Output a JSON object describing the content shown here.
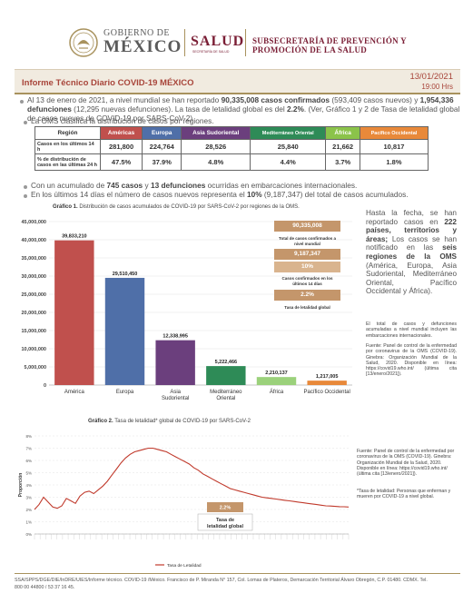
{
  "header": {
    "gob_small": "GOBIERNO DE",
    "gob_big": "MÉXICO",
    "salud": "SALUD",
    "salud_sub": "SECRETARÍA DE SALUD",
    "subsec_line1": "SUBSECRETARÍA DE PREVENCIÓN Y",
    "subsec_line2": "PROMOCIÓN DE LA SALUD"
  },
  "report": {
    "title": "Informe Técnico Diario COVID-19 MÉXICO",
    "date": "13/01/2021",
    "time": "19:00 Hrs"
  },
  "paragraphs": {
    "p1_a": "Al 13 de enero de 2021, a nivel mundial se han reportado ",
    "p1_b": "90,335,008 casos confirmados",
    "p1_c": " (593,409 casos nuevos) y ",
    "p1_d": "1,954,336",
    "p1_e": "defunciones",
    "p1_f": " (12,295 nuevas defunciones). La tasa de letalidad global es del ",
    "p1_g": "2.2%",
    "p1_h": ". (Ver, Gráfico 1 y 2 de Tasa de letalidad global",
    "p1_i": "de casos nuevos de COVID-19 por SARS-CoV-2)",
    "p2": "La OMS clasifica la distribución de casos por regiones.",
    "p3_a": "Con un acumulado de ",
    "p3_b": "745 casos",
    "p3_c": " y ",
    "p3_d": "13 defunciones",
    "p3_e": " ocurridas en embarcaciones internacionales.",
    "p4_a": "En los últimos 14 días el número de casos nuevos representa el ",
    "p4_b": "10%",
    "p4_c": " (9,187,347) del total de casos acumulados."
  },
  "region_table": {
    "header_label": "Región",
    "regions": [
      "Américas",
      "Europa",
      "Asia Sudoriental",
      "Mediterráneo Oriental",
      "África",
      "Pacífico Occidental"
    ],
    "region_colors": [
      "#c0504d",
      "#4f6fa8",
      "#6b3f7d",
      "#2e8b57",
      "#8bc34a",
      "#e8893a"
    ],
    "row1_label": "Casos en los últimos 14 h",
    "row1_values": [
      "281,800",
      "224,764",
      "28,526",
      "25,840",
      "21,662",
      "10,817"
    ],
    "row2_label": "% de distribución de casos en las últimas 24 h",
    "row2_values": [
      "47.5%",
      "37.9%",
      "4.8%",
      "4.4%",
      "3.7%",
      "1.8%"
    ]
  },
  "graph1": {
    "title_bold": "Gráfico 1.",
    "title_rest": " Distribución de casos acumulados de COVID-19 por SARS-CoV-2 por regiones de la OMS."
  },
  "sidebox": {
    "total": "90,335,008",
    "total_label": "Total de casos confirmados a nivel mundial",
    "last14": "9,187,347",
    "pct": "10%",
    "last14_label": "Casos confirmados en los últimos 14 días",
    "rate": "2.2%",
    "rate_label": "Tasa de letalidad global"
  },
  "chart_data": [
    {
      "type": "bar",
      "categories": [
        "América",
        "Europa",
        "Asia Sudoriental",
        "Mediterráneo Oriental",
        "África",
        "Pacífico Occidental"
      ],
      "values": [
        39833210,
        29510450,
        12338995,
        5222466,
        2210137,
        1217005
      ],
      "value_labels": [
        "39,833,210",
        "29,510,450",
        "12,338,995",
        "5,222,466",
        "2,210,137",
        "1,217,005"
      ],
      "colors": [
        "#c0504d",
        "#4f6fa8",
        "#6b3f7d",
        "#2e8b57",
        "#9bd17b",
        "#e8893a"
      ],
      "yticks": [
        "45,000,000",
        "40,000,000",
        "35,000,000",
        "30,000,000",
        "25,000,000",
        "20,000,000",
        "15,000,000",
        "10,000,000",
        "5,000,000",
        "0"
      ],
      "ylim": [
        0,
        45000000
      ]
    },
    {
      "type": "line",
      "title_bold": "Gráfico 2.",
      "title_rest": " Tasa de letalidad* global de COVID-19 por SARS-CoV-2",
      "ylabel": "Proporción",
      "ytick_labels": [
        "8%",
        "7%",
        "6%",
        "5%",
        "4%",
        "3%",
        "2%",
        "1%",
        "0%"
      ],
      "ylim": [
        0,
        8
      ],
      "legend": "Tasa de Letalidad",
      "annotation_value": "2.2%",
      "annotation_label": "Tasa de letalidad global",
      "color": "#c0392b",
      "series": [
        {
          "name": "Tasa de Letalidad",
          "values": [
            2.0,
            2.4,
            3.0,
            2.6,
            2.2,
            2.1,
            2.3,
            2.9,
            2.7,
            2.5,
            3.1,
            3.4,
            3.5,
            3.3,
            3.6,
            3.9,
            4.3,
            4.8,
            5.3,
            5.8,
            6.2,
            6.5,
            6.7,
            6.8,
            6.9,
            7.0,
            7.0,
            6.9,
            6.8,
            6.7,
            6.5,
            6.3,
            6.1,
            5.9,
            5.7,
            5.4,
            5.2,
            4.9,
            4.7,
            4.5,
            4.3,
            4.1,
            3.9,
            3.7,
            3.6,
            3.5,
            3.4,
            3.3,
            3.2,
            3.1,
            3.0,
            2.95,
            2.9,
            2.85,
            2.8,
            2.75,
            2.7,
            2.65,
            2.6,
            2.55,
            2.5,
            2.45,
            2.4,
            2.35,
            2.3,
            2.28,
            2.25,
            2.23,
            2.22,
            2.2
          ]
        }
      ]
    }
  ],
  "right_text": {
    "a": "Hasta la fecha, se han reportado casos en ",
    "b": "222 países, territorios y áreas;",
    "c": " Los casos se han notificado en las ",
    "d": "seis regiones de la OMS",
    "e": " (América, Europa, Asia Sudoriental, Mediterráneo Oriental, Pacífico Occidental y África).",
    "note1": "El total de casos y defunciones acumuladas a nivel mundial incluyen las embarcaciones internacionales.",
    "note2": "Fuente: Panel de control de la enfermedad por coronavirus de la OMS (COVID-19). Ginebra: Organización Mundial de la Salud, 2020. Disponible en línea: https://covid19.who.int/ (última cita [13/enero/2021])."
  },
  "graph2_notes": {
    "source": "Fuente: Panel de control de la enfermedad por coronavirus de la OMS (COVID-19). Ginebra: Organización Mundial de la Salud, 2020. Disponible en línea: https://covid19.who.int/ (última cita [13/enero/2021]).",
    "def": "*Tasa de letalidad: Personas que enferman y mueren por COVID-19 a nivel global."
  },
  "footer": {
    "line1": "SSA/SPPS/DGE/DIE/InDRE/UIES/Informe técnico. COVID-19 /México. Francisco de P. Miranda N° 157, Col. Lomas de Plateros, Demarcación Territorial Álvaro Obregón, C.P. 01480. CDMX. Tel.",
    "line2": "800 00 44800 / 53 37 16 45."
  }
}
